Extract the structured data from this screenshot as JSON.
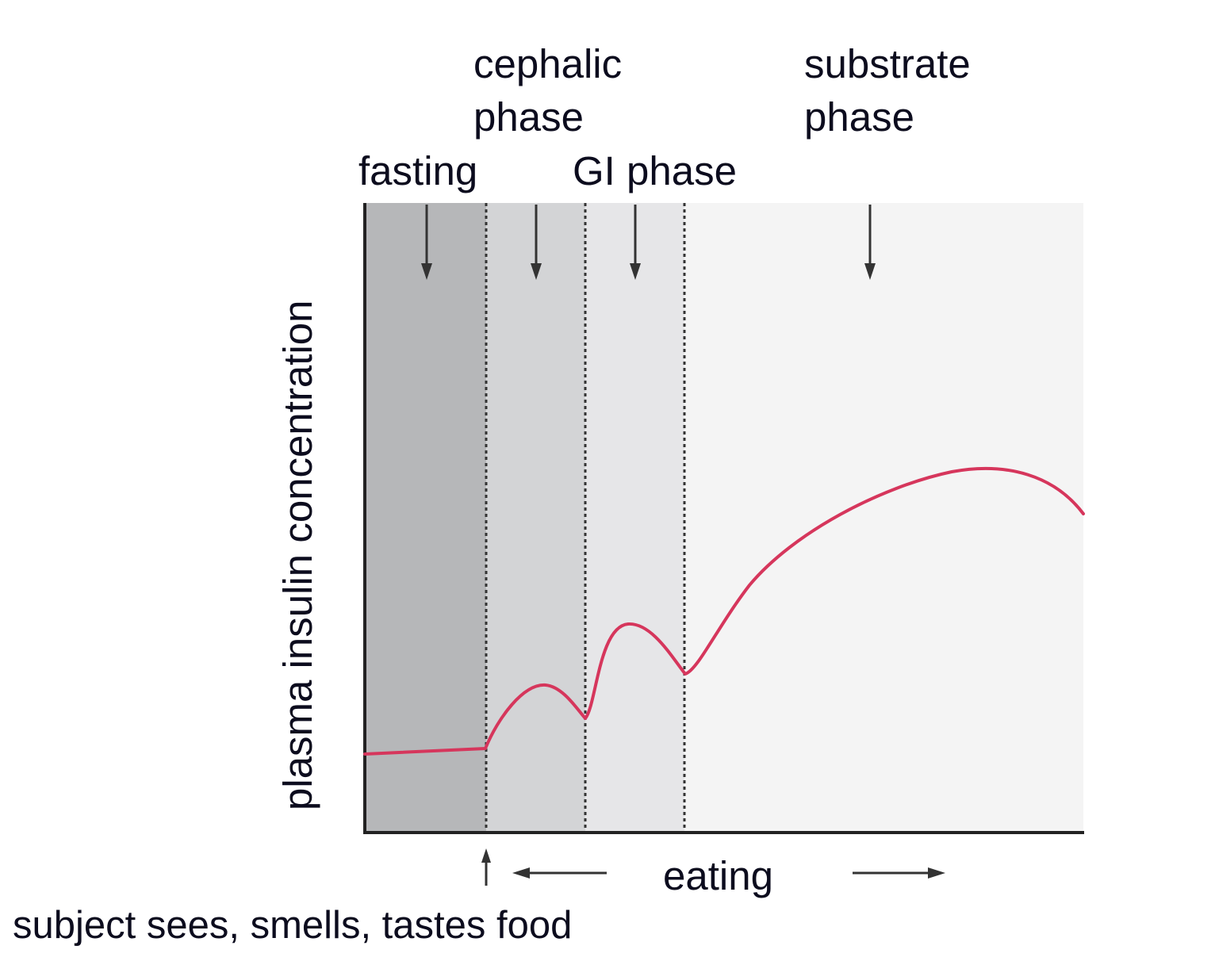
{
  "diagram": {
    "y_axis_label": "plasma insulin concentration",
    "phases": [
      {
        "name": "fasting",
        "label_lines": [
          "fasting"
        ],
        "shade": "#b6b7b9"
      },
      {
        "name": "cephalic",
        "label_lines": [
          "cephalic",
          "phase"
        ],
        "shade": "#d3d4d6"
      },
      {
        "name": "gi",
        "label_lines": [
          "GI phase"
        ],
        "shade": "#e6e6e8"
      },
      {
        "name": "substrate",
        "label_lines": [
          "substrate",
          "phase"
        ],
        "shade": "#f4f4f4"
      }
    ],
    "eating_label": "eating",
    "trigger_label": "subject sees, smells, tastes food",
    "curve_color": "#d6365c",
    "axis_color": "#222222",
    "divider_style": "dotted"
  }
}
